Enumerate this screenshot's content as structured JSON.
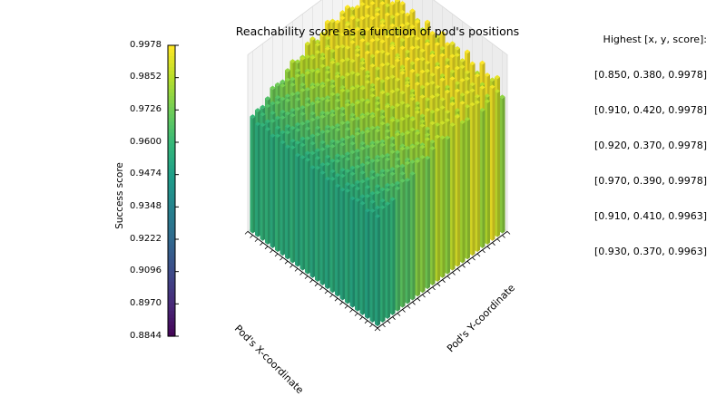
{
  "title": "Reachability score as a function of pod's positions",
  "highest": {
    "header": "Highest [x, y, score]:",
    "rows": [
      "[0.850, 0.380, 0.9978]",
      "[0.910, 0.420, 0.9978]",
      "[0.920, 0.370, 0.9978]",
      "[0.970, 0.390, 0.9978]",
      "[0.910, 0.410, 0.9963]",
      "[0.930, 0.370, 0.9963]"
    ]
  },
  "colorbar": {
    "label": "Success score",
    "ticks": [
      "0.9978",
      "0.9852",
      "0.9726",
      "0.9600",
      "0.9474",
      "0.9348",
      "0.9222",
      "0.9096",
      "0.8970",
      "0.8844"
    ],
    "colormap": "viridis"
  },
  "chart_data": {
    "type": "bar3d",
    "title": "Reachability score as a function of pod's positions",
    "xlabel": "Pod's X-coordinate",
    "ylabel": "Pod's Y-coordinate",
    "zlabel": "Success score",
    "zlim": [
      0.8844,
      0.9978
    ],
    "x_range": [
      0.6,
      1.0
    ],
    "y_range": [
      0.2,
      0.6
    ],
    "grid": true,
    "note_values": "Grid of 3D bars; top scores listed in annotation",
    "top_points": [
      {
        "x": 0.85,
        "y": 0.38,
        "z": 0.9978
      },
      {
        "x": 0.91,
        "y": 0.42,
        "z": 0.9978
      },
      {
        "x": 0.92,
        "y": 0.37,
        "z": 0.9978
      },
      {
        "x": 0.97,
        "y": 0.39,
        "z": 0.9978
      },
      {
        "x": 0.91,
        "y": 0.41,
        "z": 0.9963
      },
      {
        "x": 0.93,
        "y": 0.37,
        "z": 0.9963
      }
    ]
  }
}
